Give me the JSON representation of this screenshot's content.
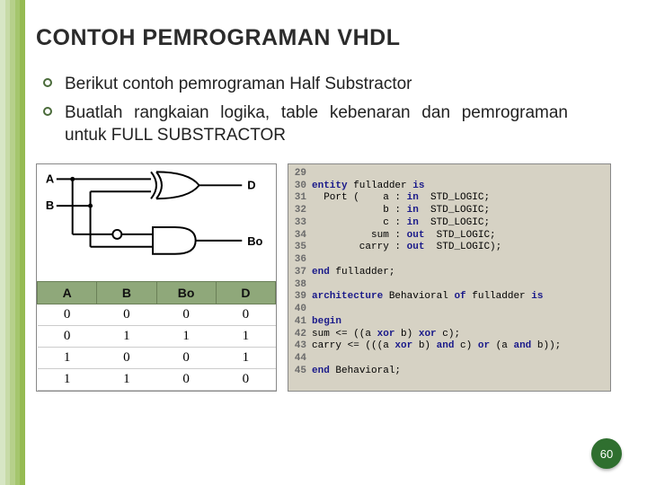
{
  "stripes": [
    "#d7e6c5",
    "#c7dba8",
    "#b6d08b",
    "#a5c66e",
    "#95bb52"
  ],
  "title": "CONTOH PEMROGRAMAN VHDL",
  "bullets": [
    "Berikut contoh pemrograman Half Substractor",
    "Buatlah rangkaian logika, table kebenaran dan pemrograman untuk FULL SUBSTRACTOR"
  ],
  "circuit": {
    "labels": {
      "A": "A",
      "B": "B",
      "D": "D",
      "Bo": "Bo"
    },
    "stroke": "#000000",
    "gate_fill": "#ffffff"
  },
  "truth": {
    "headers": [
      "A",
      "B",
      "Bo",
      "D"
    ],
    "rows": [
      [
        "0",
        "0",
        "0",
        "0"
      ],
      [
        "0",
        "1",
        "1",
        "1"
      ],
      [
        "1",
        "0",
        "0",
        "1"
      ],
      [
        "1",
        "1",
        "0",
        "0"
      ]
    ],
    "header_bg": "#8fa87a",
    "header_border": "#6b8058"
  },
  "code": {
    "bg": "#d6d2c4",
    "keyword_color": "#1a1a8a",
    "lines": [
      {
        "n": 29,
        "t": ""
      },
      {
        "n": 30,
        "t": "entity fulladder is"
      },
      {
        "n": 31,
        "t": "  Port (    a : in  STD_LOGIC;"
      },
      {
        "n": 32,
        "t": "            b : in  STD_LOGIC;"
      },
      {
        "n": 33,
        "t": "            c : in  STD_LOGIC;"
      },
      {
        "n": 34,
        "t": "          sum : out  STD_LOGIC;"
      },
      {
        "n": 35,
        "t": "        carry : out  STD_LOGIC);"
      },
      {
        "n": 36,
        "t": ""
      },
      {
        "n": 37,
        "t": "end fulladder;"
      },
      {
        "n": 38,
        "t": ""
      },
      {
        "n": 39,
        "t": "architecture Behavioral of fulladder is"
      },
      {
        "n": 40,
        "t": ""
      },
      {
        "n": 41,
        "t": "begin"
      },
      {
        "n": 42,
        "t": "sum <= ((a xor b) xor c);"
      },
      {
        "n": 43,
        "t": "carry <= (((a xor b) and c) or (a and b));"
      },
      {
        "n": 44,
        "t": ""
      },
      {
        "n": 45,
        "t": "end Behavioral;"
      }
    ],
    "keywords": [
      "entity",
      "is",
      "in",
      "out",
      "end",
      "architecture",
      "of",
      "begin",
      "xor",
      "and",
      "or"
    ]
  },
  "page_number": "60"
}
